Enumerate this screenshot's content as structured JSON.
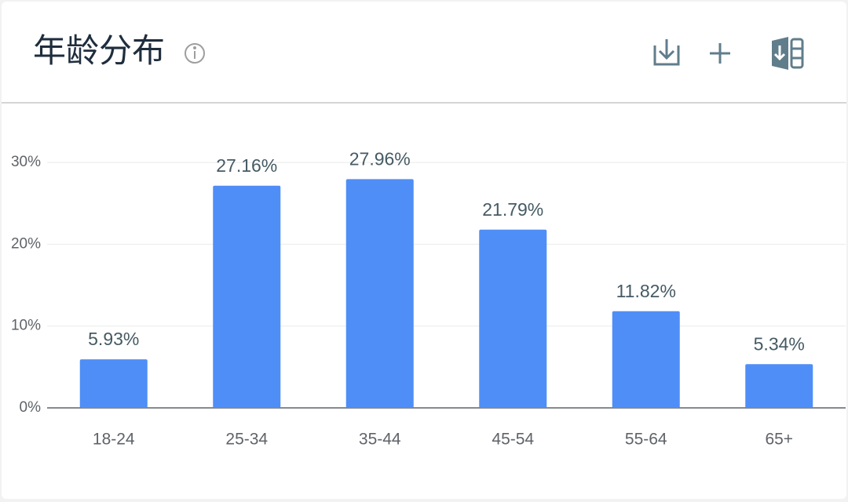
{
  "chart_data": {
    "type": "bar",
    "title": "年龄分布",
    "categories": [
      "18-24",
      "25-34",
      "35-44",
      "45-54",
      "55-64",
      "65+"
    ],
    "values": [
      5.93,
      27.16,
      27.96,
      21.79,
      11.82,
      5.34
    ],
    "value_labels": [
      "5.93%",
      "27.16%",
      "27.96%",
      "21.79%",
      "11.82%",
      "5.34%"
    ],
    "color": "#4f8ef7",
    "ylim": [
      0,
      35
    ],
    "yticks": [
      {
        "value": 0,
        "label": "0%"
      },
      {
        "value": 10,
        "label": "10%"
      },
      {
        "value": 20,
        "label": "20%"
      },
      {
        "value": 30,
        "label": "30%"
      }
    ],
    "grid": true
  }
}
